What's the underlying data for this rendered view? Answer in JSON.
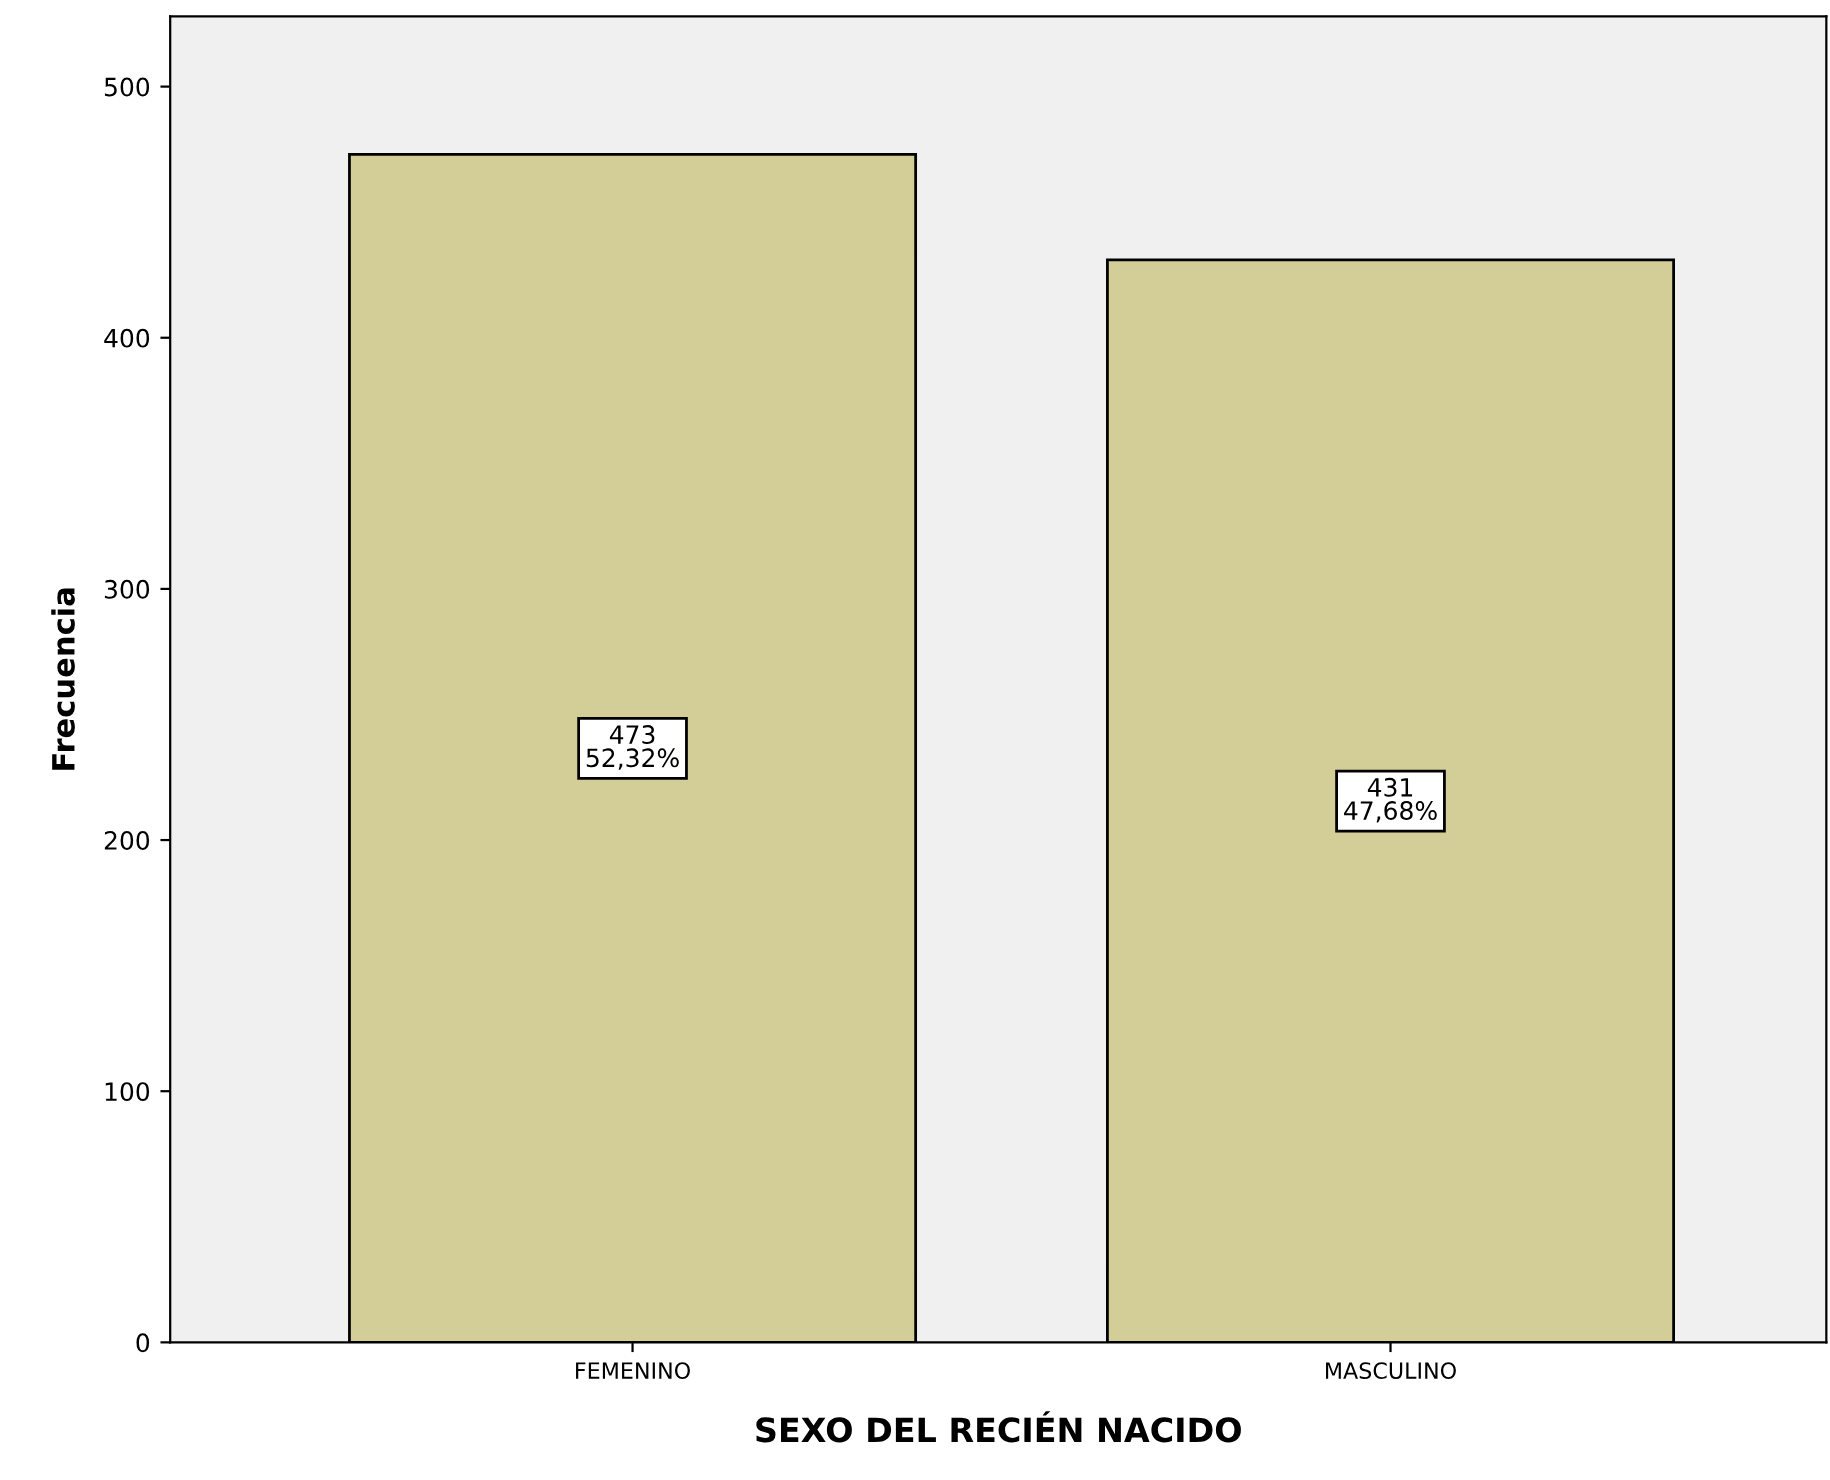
{
  "chart_data": {
    "type": "bar",
    "xlabel": "SEXO DEL RECIÉN NACIDO",
    "ylabel": "Frecuencia",
    "categories": [
      "FEMENINO",
      "MASCULINO"
    ],
    "values": [
      473,
      431
    ],
    "color": "#d3ce97",
    "value_labels": [
      "473\n52,32%",
      "431\n47,68%"
    ],
    "ylim": [
      0,
      528
    ],
    "yticks": [
      0,
      100,
      200,
      300,
      400,
      500
    ],
    "grid": false,
    "legend": false
  }
}
